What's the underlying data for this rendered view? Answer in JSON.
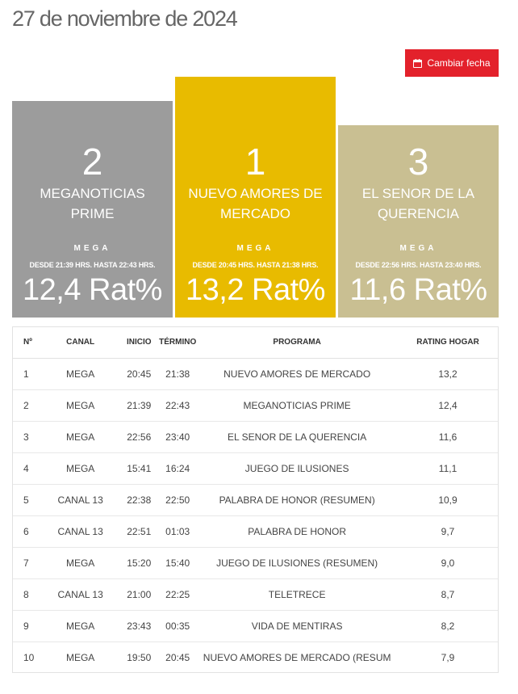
{
  "page": {
    "title": "27 de noviembre de 2024",
    "change_date_label": "Cambiar fecha"
  },
  "podium": [
    {
      "rank": "2",
      "program": "MEGANOTICIAS PRIME",
      "channel": "MEGA",
      "times": "DESDE 21:39 HRS. HASTA 22:43 HRS.",
      "rating": "12,4 Rat%",
      "color": "#9c9c9c"
    },
    {
      "rank": "1",
      "program": "NUEVO AMORES DE MERCADO",
      "channel": "MEGA",
      "times": "DESDE 20:45 HRS. HASTA 21:38 HRS.",
      "rating": "13,2 Rat%",
      "color": "#e8bb00"
    },
    {
      "rank": "3",
      "program": "EL SENOR DE LA QUERENCIA",
      "channel": "MEGA",
      "times": "DESDE 22:56 HRS. HASTA 23:40 HRS.",
      "rating": "11,6 Rat%",
      "color": "#c9bf92"
    }
  ],
  "table": {
    "headers": {
      "no": "Nº",
      "canal": "CANAL",
      "inicio": "INICIO",
      "termino": "TÉRMINO",
      "programa": "PROGRAMA",
      "rating": "RATING HOGAR"
    },
    "rows": [
      {
        "no": "1",
        "canal": "MEGA",
        "inicio": "20:45",
        "termino": "21:38",
        "programa": "NUEVO AMORES DE MERCADO",
        "rating": "13,2"
      },
      {
        "no": "2",
        "canal": "MEGA",
        "inicio": "21:39",
        "termino": "22:43",
        "programa": "MEGANOTICIAS PRIME",
        "rating": "12,4"
      },
      {
        "no": "3",
        "canal": "MEGA",
        "inicio": "22:56",
        "termino": "23:40",
        "programa": "EL SENOR DE LA QUERENCIA",
        "rating": "11,6"
      },
      {
        "no": "4",
        "canal": "MEGA",
        "inicio": "15:41",
        "termino": "16:24",
        "programa": "JUEGO DE ILUSIONES",
        "rating": "11,1"
      },
      {
        "no": "5",
        "canal": "CANAL 13",
        "inicio": "22:38",
        "termino": "22:50",
        "programa": "PALABRA DE HONOR (RESUMEN)",
        "rating": "10,9"
      },
      {
        "no": "6",
        "canal": "CANAL 13",
        "inicio": "22:51",
        "termino": "01:03",
        "programa": "PALABRA DE HONOR",
        "rating": "9,7"
      },
      {
        "no": "7",
        "canal": "MEGA",
        "inicio": "15:20",
        "termino": "15:40",
        "programa": "JUEGO DE ILUSIONES (RESUMEN)",
        "rating": "9,0"
      },
      {
        "no": "8",
        "canal": "CANAL 13",
        "inicio": "21:00",
        "termino": "22:25",
        "programa": "TELETRECE",
        "rating": "8,7"
      },
      {
        "no": "9",
        "canal": "MEGA",
        "inicio": "23:43",
        "termino": "00:35",
        "programa": "VIDA DE MENTIRAS",
        "rating": "8,2"
      },
      {
        "no": "10",
        "canal": "MEGA",
        "inicio": "19:50",
        "termino": "20:45",
        "programa": "NUEVO AMORES DE MERCADO (RESUM",
        "rating": "7,9"
      }
    ]
  }
}
